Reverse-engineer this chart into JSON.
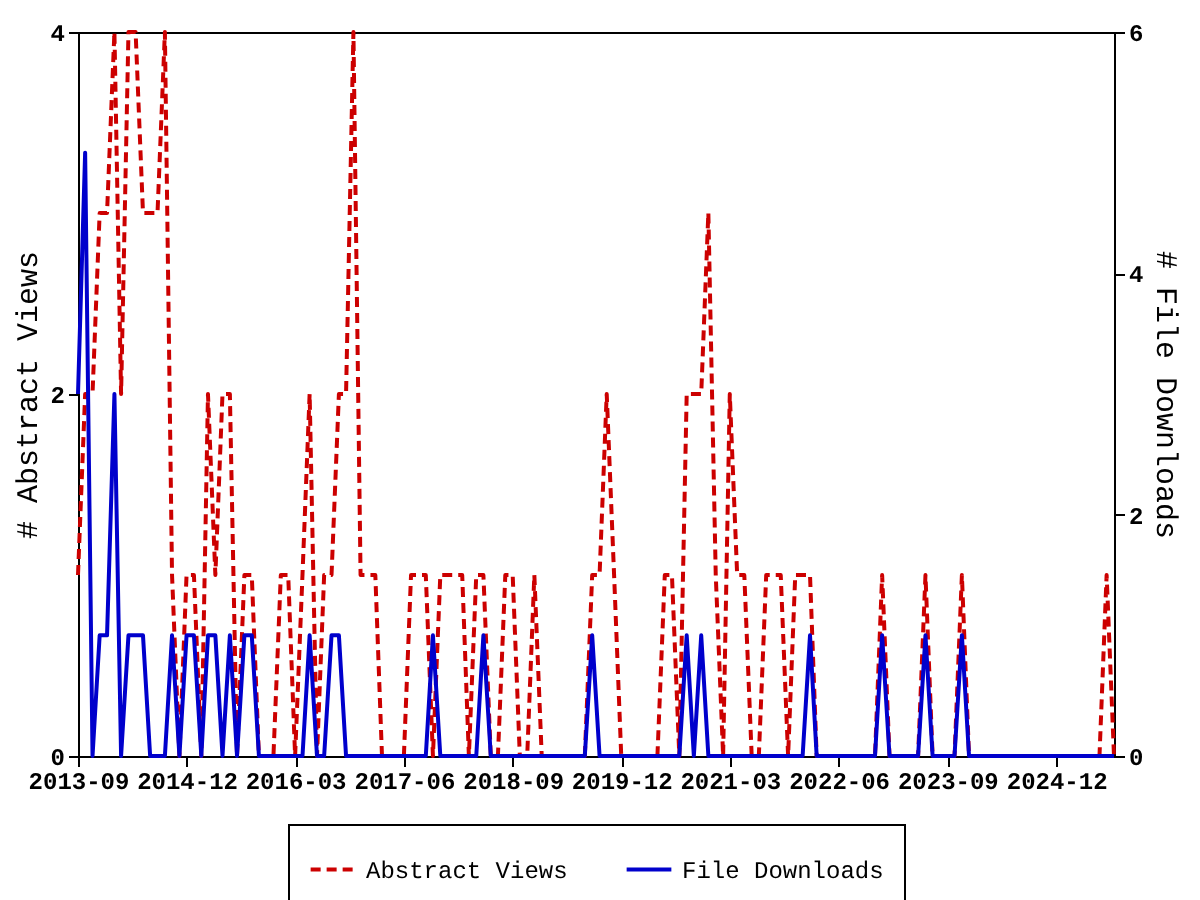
{
  "chart_data": {
    "type": "line",
    "xlabel": null,
    "ylabel": "# Abstract Views",
    "y2label": "# File Downloads",
    "xlim": [
      "2013-09",
      "2025-08"
    ],
    "xticks": [
      {
        "value": "2013-09",
        "label": "2013-09"
      },
      {
        "value": "2014-12",
        "label": "2014-12"
      },
      {
        "value": "2016-03",
        "label": "2016-03"
      },
      {
        "value": "2017-06",
        "label": "2017-06"
      },
      {
        "value": "2018-09",
        "label": "2018-09"
      },
      {
        "value": "2019-12",
        "label": "2019-12"
      },
      {
        "value": "2021-03",
        "label": "2021-03"
      },
      {
        "value": "2022-06",
        "label": "2022-06"
      },
      {
        "value": "2023-09",
        "label": "2023-09"
      },
      {
        "value": "2024-12",
        "label": "2024-12"
      }
    ],
    "ylim": [
      0,
      4
    ],
    "yticks": [
      0,
      2,
      4
    ],
    "y2lim": [
      0,
      6
    ],
    "y2ticks": [
      0,
      2,
      4,
      6
    ],
    "x": [
      "2013-09",
      "2013-10",
      "2013-11",
      "2013-12",
      "2014-01",
      "2014-02",
      "2014-03",
      "2014-04",
      "2014-05",
      "2014-06",
      "2014-07",
      "2014-08",
      "2014-09",
      "2014-10",
      "2014-11",
      "2014-12",
      "2015-01",
      "2015-02",
      "2015-03",
      "2015-04",
      "2015-05",
      "2015-06",
      "2015-07",
      "2015-08",
      "2015-09",
      "2015-10",
      "2015-11",
      "2015-12",
      "2016-01",
      "2016-02",
      "2016-03",
      "2016-04",
      "2016-05",
      "2016-06",
      "2016-07",
      "2016-08",
      "2016-09",
      "2016-10",
      "2016-11",
      "2016-12",
      "2017-01",
      "2017-02",
      "2017-03",
      "2017-04",
      "2017-05",
      "2017-06",
      "2017-07",
      "2017-08",
      "2017-09",
      "2017-10",
      "2017-11",
      "2017-12",
      "2018-01",
      "2018-02",
      "2018-03",
      "2018-04",
      "2018-05",
      "2018-06",
      "2018-07",
      "2018-08",
      "2018-09",
      "2018-10",
      "2018-11",
      "2018-12",
      "2019-01",
      "2019-02",
      "2019-03",
      "2019-04",
      "2019-05",
      "2019-06",
      "2019-07",
      "2019-08",
      "2019-09",
      "2019-10",
      "2019-11",
      "2019-12",
      "2020-01",
      "2020-02",
      "2020-03",
      "2020-04",
      "2020-05",
      "2020-06",
      "2020-07",
      "2020-08",
      "2020-09",
      "2020-10",
      "2020-11",
      "2020-12",
      "2021-01",
      "2021-02",
      "2021-03",
      "2021-04",
      "2021-05",
      "2021-06",
      "2021-07",
      "2021-08",
      "2021-09",
      "2021-10",
      "2021-11",
      "2021-12",
      "2022-01",
      "2022-02",
      "2022-03",
      "2022-04",
      "2022-05",
      "2022-06",
      "2022-07",
      "2022-08",
      "2022-09",
      "2022-10",
      "2022-11",
      "2022-12",
      "2023-01",
      "2023-02",
      "2023-03",
      "2023-04",
      "2023-05",
      "2023-06",
      "2023-07",
      "2023-08",
      "2023-09",
      "2023-10",
      "2023-11",
      "2023-12",
      "2024-01",
      "2024-02",
      "2024-03",
      "2024-04",
      "2024-05",
      "2024-06",
      "2024-07",
      "2024-08",
      "2024-09",
      "2024-10",
      "2024-11",
      "2024-12",
      "2025-01",
      "2025-02",
      "2025-03",
      "2025-04",
      "2025-05",
      "2025-06",
      "2025-07",
      "2025-08"
    ],
    "series": [
      {
        "name": "Abstract Views",
        "color": "#cc0000",
        "line_style": "dashed",
        "axis": "y",
        "values": [
          1,
          2,
          2,
          3,
          3,
          4,
          2,
          4,
          4,
          3,
          3,
          3,
          4,
          1,
          0,
          1,
          1,
          0,
          2,
          1,
          2,
          2,
          0,
          1,
          1,
          0,
          0,
          0,
          1,
          1,
          0,
          1,
          2,
          0,
          1,
          1,
          2,
          2,
          4,
          1,
          1,
          1,
          0,
          0,
          0,
          0,
          1,
          1,
          1,
          0,
          1,
          1,
          1,
          1,
          0,
          1,
          1,
          0,
          0,
          1,
          1,
          0,
          0,
          1,
          0,
          0,
          0,
          0,
          0,
          0,
          0,
          1,
          1,
          2,
          1,
          0,
          0,
          0,
          0,
          0,
          0,
          1,
          1,
          0,
          2,
          2,
          2,
          3,
          1,
          0,
          2,
          1,
          1,
          0,
          0,
          1,
          1,
          1,
          0,
          1,
          1,
          1,
          0,
          0,
          0,
          0,
          0,
          0,
          0,
          0,
          0,
          1,
          0,
          0,
          0,
          0,
          0,
          1,
          0,
          0,
          0,
          0,
          1,
          0,
          0,
          0,
          0,
          0,
          0,
          0,
          0,
          0,
          0,
          0,
          0,
          0,
          0,
          0,
          0,
          0,
          0,
          0,
          1,
          0
        ]
      },
      {
        "name": "File Downloads",
        "color": "#0000cc",
        "line_style": "solid",
        "axis": "y2",
        "values": [
          3,
          5,
          0,
          1,
          1,
          3,
          0,
          1,
          1,
          1,
          0,
          0,
          0,
          1,
          0,
          1,
          1,
          0,
          1,
          1,
          0,
          1,
          0,
          1,
          1,
          0,
          0,
          0,
          0,
          0,
          0,
          0,
          1,
          0,
          0,
          1,
          1,
          0,
          0,
          0,
          0,
          0,
          0,
          0,
          0,
          0,
          0,
          0,
          0,
          1,
          0,
          0,
          0,
          0,
          0,
          0,
          1,
          0,
          0,
          0,
          0,
          0,
          0,
          0,
          0,
          0,
          0,
          0,
          0,
          0,
          0,
          1,
          0,
          0,
          0,
          0,
          0,
          0,
          0,
          0,
          0,
          0,
          0,
          0,
          1,
          0,
          1,
          0,
          0,
          0,
          0,
          0,
          0,
          0,
          0,
          0,
          0,
          0,
          0,
          0,
          0,
          1,
          0,
          0,
          0,
          0,
          0,
          0,
          0,
          0,
          0,
          1,
          0,
          0,
          0,
          0,
          0,
          1,
          0,
          0,
          0,
          0,
          1,
          0,
          0,
          0,
          0,
          0,
          0,
          0,
          0,
          0,
          0,
          0,
          0,
          0,
          0,
          0,
          0,
          0,
          0,
          0,
          0,
          0
        ]
      }
    ],
    "grid": false,
    "legend": "bottom",
    "marker": "none"
  }
}
